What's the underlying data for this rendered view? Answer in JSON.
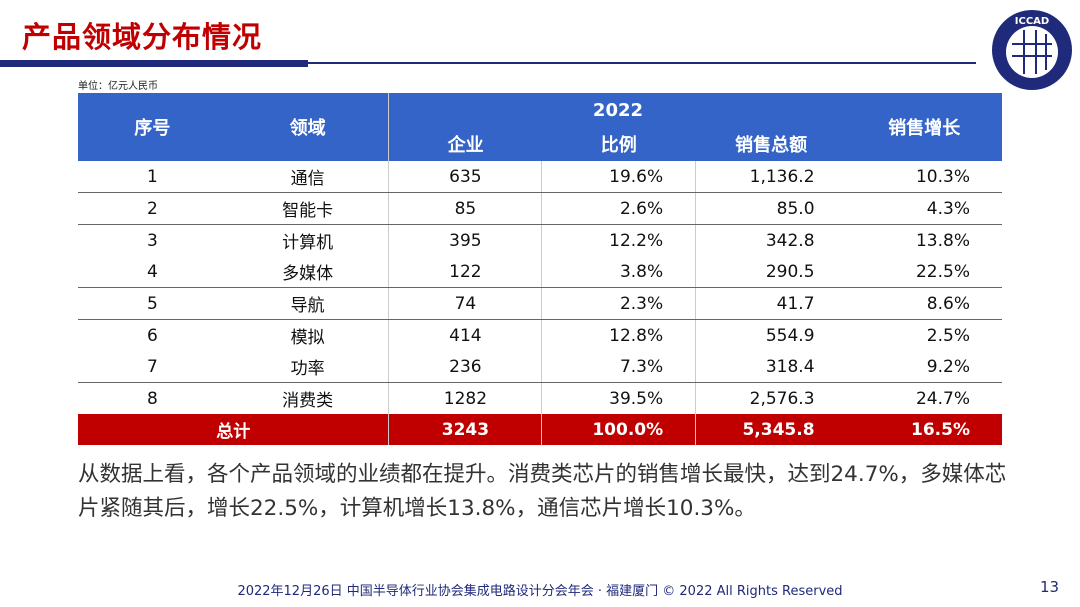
{
  "title": "产品领域分布情况",
  "logo_text": "ICCAD",
  "unit": "单位：亿元人民币",
  "table": {
    "year": "2022",
    "headers": {
      "no": "序号",
      "field": "领域",
      "companies": "企业",
      "ratio": "比例",
      "sales": "销售总额",
      "growth": "销售增长"
    },
    "rows": [
      {
        "no": "1",
        "field": "通信",
        "companies": "635",
        "ratio": "19.6%",
        "sales": "1,136.2",
        "growth": "10.3%"
      },
      {
        "no": "2",
        "field": "智能卡",
        "companies": "85",
        "ratio": "2.6%",
        "sales": "85.0",
        "growth": "4.3%"
      },
      {
        "no": "3",
        "field": "计算机",
        "companies": "395",
        "ratio": "12.2%",
        "sales": "342.8",
        "growth": "13.8%"
      },
      {
        "no": "4",
        "field": "多媒体",
        "companies": "122",
        "ratio": "3.8%",
        "sales": "290.5",
        "growth": "22.5%"
      },
      {
        "no": "5",
        "field": "导航",
        "companies": "74",
        "ratio": "2.3%",
        "sales": "41.7",
        "growth": "8.6%"
      },
      {
        "no": "6",
        "field": "模拟",
        "companies": "414",
        "ratio": "12.8%",
        "sales": "554.9",
        "growth": "2.5%"
      },
      {
        "no": "7",
        "field": "功率",
        "companies": "236",
        "ratio": "7.3%",
        "sales": "318.4",
        "growth": "9.2%"
      },
      {
        "no": "8",
        "field": "消费类",
        "companies": "1282",
        "ratio": "39.5%",
        "sales": "2,576.3",
        "growth": "24.7%"
      }
    ],
    "total": {
      "label": "总计",
      "companies": "3243",
      "ratio": "100.0%",
      "sales": "5,345.8",
      "growth": "16.5%"
    }
  },
  "paragraph": "从数据上看，各个产品领域的业绩都在提升。消费类芯片的销售增长最快，达到24.7%，多媒体芯片紧随其后，增长22.5%，计算机增长13.8%，通信芯片增长10.3%。",
  "footer": "2022年12月26日 中国半导体行业协会集成电路设计分会年会 · 福建厦门 © 2022 All Rights Reserved",
  "page_number": "13",
  "colors": {
    "title": "#C00000",
    "header": "#3464C8",
    "total": "#C00000",
    "rule": "#1F2A7A"
  }
}
